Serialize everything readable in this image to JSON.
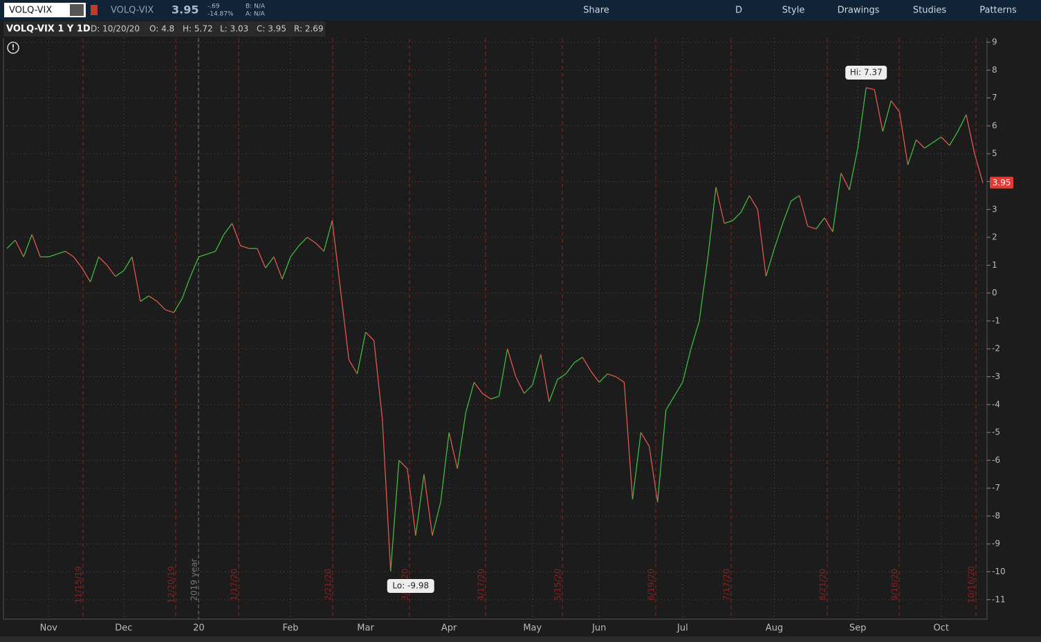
{
  "toolbar": {
    "symbol_input": "VOLQ-VIX",
    "symbol": "VOLQ-VIX",
    "last": "3.95",
    "net_change": "-.69",
    "pct_change": "-14.87%",
    "bid": "B: N/A",
    "ask": "A: N/A",
    "buttons": [
      "Share",
      "D",
      "Style",
      "Drawings",
      "Studies",
      "Patterns"
    ]
  },
  "header": {
    "title": "VOLQ-VIX 1 Y 1D",
    "fields": [
      "D: 10/20/20",
      "O: 4.8",
      "H: 5.72",
      "L: 3.03",
      "C: 3.95",
      "R: 2.69"
    ]
  },
  "chart_data": {
    "type": "line",
    "categories": [
      null,
      null,
      null,
      null,
      null,
      "Nov",
      null,
      null,
      null,
      null,
      null,
      null,
      null,
      null,
      "Dec",
      null,
      null,
      null,
      null,
      null,
      null,
      null,
      null,
      "20",
      null,
      null,
      null,
      null,
      null,
      null,
      null,
      null,
      null,
      null,
      "Feb",
      null,
      null,
      null,
      null,
      null,
      null,
      null,
      null,
      "Mar",
      null,
      null,
      null,
      null,
      null,
      null,
      null,
      null,
      null,
      "Apr",
      null,
      null,
      null,
      null,
      null,
      null,
      null,
      null,
      null,
      "May",
      null,
      null,
      null,
      null,
      null,
      null,
      null,
      "Jun",
      null,
      null,
      null,
      null,
      null,
      null,
      null,
      null,
      null,
      "Jul",
      null,
      null,
      null,
      null,
      null,
      null,
      null,
      null,
      null,
      null,
      "Aug",
      null,
      null,
      null,
      null,
      null,
      null,
      null,
      null,
      null,
      "Sep",
      null,
      null,
      null,
      null,
      null,
      null,
      null,
      null,
      null,
      "Oct",
      null,
      null,
      null,
      null,
      null
    ],
    "values": [
      1.6,
      1.9,
      1.3,
      2.1,
      1.3,
      1.3,
      1.4,
      1.5,
      1.3,
      0.9,
      0.4,
      1.3,
      1.0,
      0.6,
      0.8,
      1.3,
      -0.3,
      -0.1,
      -0.3,
      -0.6,
      -0.7,
      -0.2,
      0.6,
      1.3,
      1.4,
      1.5,
      2.1,
      2.5,
      1.7,
      1.6,
      1.6,
      0.9,
      1.3,
      0.5,
      1.3,
      1.7,
      2.0,
      1.8,
      1.5,
      2.6,
      0.1,
      -2.4,
      -2.9,
      -1.4,
      -1.7,
      -4.5,
      -9.98,
      -6.0,
      -6.3,
      -8.7,
      -6.5,
      -8.7,
      -7.5,
      -5.0,
      -6.3,
      -4.3,
      -3.2,
      -3.6,
      -3.8,
      -3.7,
      -2.0,
      -3.0,
      -3.6,
      -3.3,
      -2.2,
      -3.9,
      -3.1,
      -2.9,
      -2.5,
      -2.3,
      -2.8,
      -3.2,
      -2.9,
      -3.0,
      -3.2,
      -7.4,
      -5.0,
      -5.5,
      -7.5,
      -4.2,
      -3.7,
      -3.2,
      -2.0,
      -1.0,
      1.2,
      3.8,
      2.5,
      2.6,
      2.9,
      3.5,
      3.0,
      0.6,
      1.6,
      2.5,
      3.3,
      3.5,
      2.4,
      2.3,
      2.7,
      2.2,
      4.3,
      3.7,
      5.2,
      7.37,
      7.3,
      5.8,
      6.9,
      6.5,
      4.6,
      5.5,
      5.2,
      5.4,
      5.6,
      5.3,
      5.8,
      6.4,
      5.0,
      3.95
    ],
    "up_color": "#3dbb3d",
    "down_color": "#e0574f",
    "ylim": [
      -11.7,
      9.15
    ],
    "yticks": [
      -11,
      -10,
      -9,
      -8,
      -7,
      -6,
      -5,
      -4,
      -3,
      -2,
      -1,
      0,
      1,
      2,
      3,
      4,
      5,
      6,
      7,
      8,
      9
    ],
    "grid": true,
    "annotations": {
      "high": "Hi: 7.37",
      "low": "Lo: -9.98",
      "last": "3.95",
      "year": "2019 year"
    },
    "expirations": [
      "11/15/19",
      "12/20/19",
      "1/17/20",
      "2/21/20",
      "3/20/20",
      "4/17/20",
      "5/15/20",
      "6/19/20",
      "7/17/20",
      "8/21/20",
      "9/18/20",
      "10/16/20"
    ]
  }
}
